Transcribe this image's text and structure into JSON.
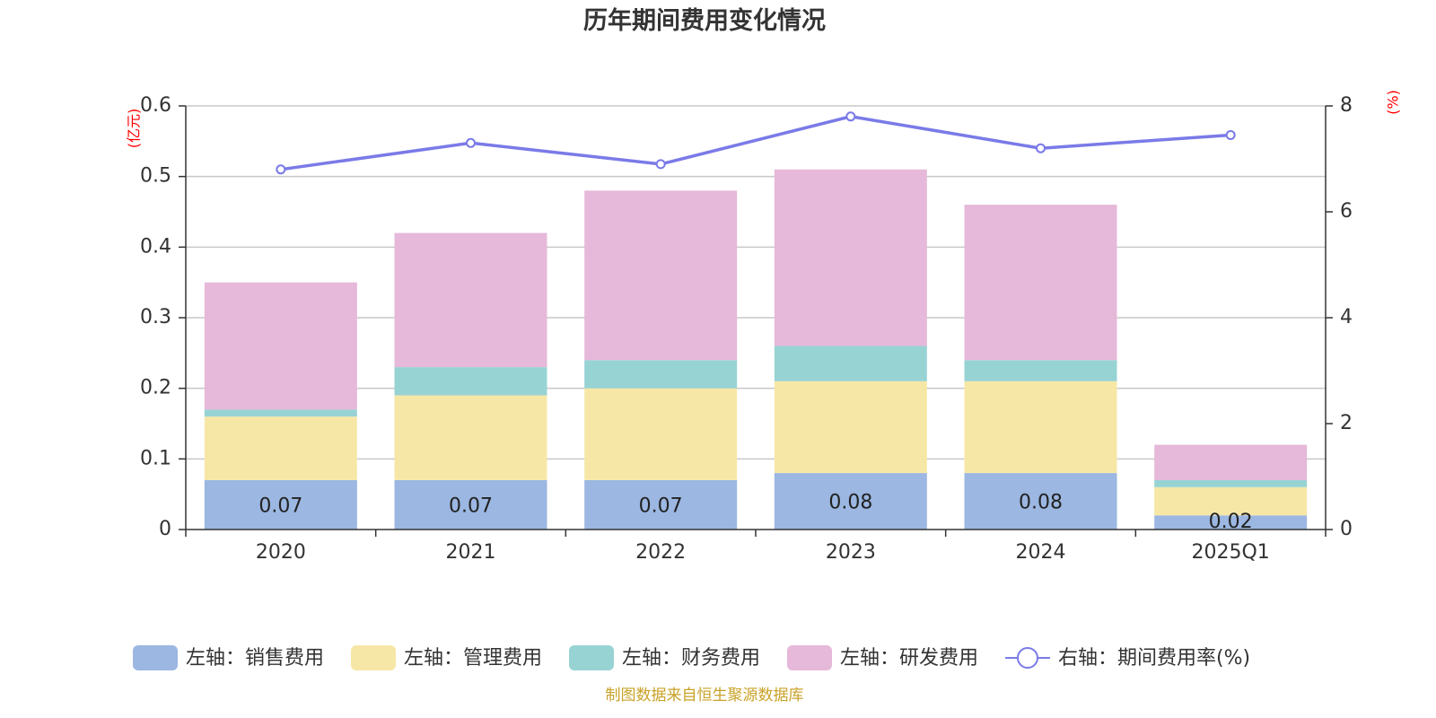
{
  "title": "历年期间费用变化情况",
  "source": "制图数据来自恒生聚源数据库",
  "colors": {
    "sales": "#9bb7e2",
    "admin": "#f7e7a7",
    "finance": "#98d3d4",
    "rd": "#e6b8d9",
    "rate": "#7a7ae8",
    "unit": "#ff0000",
    "source": "#c9a227"
  },
  "chart_data": {
    "type": "bar",
    "stacked": true,
    "categories": [
      "2020",
      "2021",
      "2022",
      "2023",
      "2024",
      "2025Q1"
    ],
    "series": [
      {
        "name": "左轴：销售费用",
        "axis": "left",
        "values": [
          0.07,
          0.07,
          0.07,
          0.08,
          0.08,
          0.02
        ],
        "labels": [
          "0.07",
          "0.07",
          "0.07",
          "0.08",
          "0.08",
          "0.02"
        ]
      },
      {
        "name": "左轴：管理费用",
        "axis": "left",
        "values": [
          0.09,
          0.12,
          0.13,
          0.13,
          0.13,
          0.04
        ]
      },
      {
        "name": "左轴：财务费用",
        "axis": "left",
        "values": [
          0.01,
          0.04,
          0.04,
          0.05,
          0.03,
          0.01
        ]
      },
      {
        "name": "左轴：研发费用",
        "axis": "left",
        "values": [
          0.18,
          0.19,
          0.24,
          0.25,
          0.22,
          0.05
        ]
      },
      {
        "name": "右轴：期间费用率(%)",
        "axis": "right",
        "type": "line",
        "values": [
          6.8,
          7.3,
          6.9,
          7.8,
          7.2,
          7.45
        ]
      }
    ],
    "y_left": {
      "unit": "(亿元)",
      "min": 0,
      "max": 0.6,
      "ticks": [
        "0",
        "0.1",
        "0.2",
        "0.3",
        "0.4",
        "0.5",
        "0.6"
      ]
    },
    "y_right": {
      "unit": "(%)",
      "min": 0,
      "max": 8,
      "ticks": [
        "0",
        "2",
        "4",
        "6",
        "8"
      ]
    },
    "grid": true,
    "legend": "bottom"
  }
}
